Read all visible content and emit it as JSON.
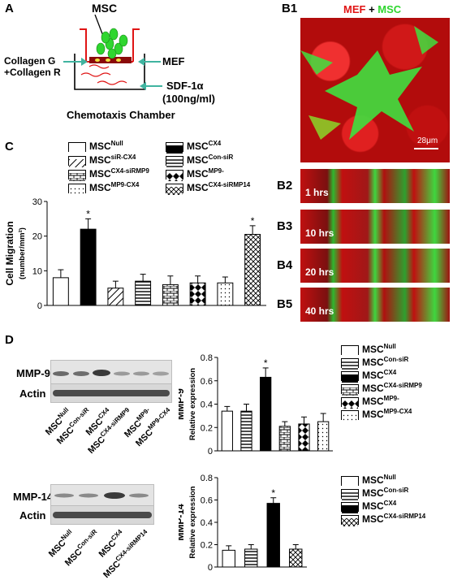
{
  "panels": {
    "A": {
      "label": "A",
      "msc": "MSC",
      "collagen_g": "Collagen G",
      "collagen_r": "+Collagen R",
      "mef": "MEF",
      "sdf": "SDF-1α",
      "sdf_conc": "(100ng/ml)",
      "caption": "Chemotaxis Chamber"
    },
    "B": {
      "label_b1": "B1",
      "title_mef": "MEF",
      "title_plus": " + ",
      "title_msc": "MSC",
      "scale_bar": "28μm",
      "rows": [
        {
          "label": "B2",
          "time": "1 hrs"
        },
        {
          "label": "B3",
          "time": "10 hrs"
        },
        {
          "label": "B4",
          "time": "20 hrs"
        },
        {
          "label": "B5",
          "time": "40 hrs"
        }
      ]
    },
    "C": {
      "label": "C"
    },
    "D": {
      "label": "D",
      "blot1": {
        "band1": "MMP-9",
        "band2": "Actin",
        "lanes": [
          {
            "base": "MSC",
            "sup": "Null"
          },
          {
            "base": "MSC",
            "sup": "Con-siR"
          },
          {
            "base": "MSC",
            "sup": "CX4"
          },
          {
            "base": "MSC",
            "sup": "CX4-siRMP9"
          },
          {
            "base": "MSC",
            "sup": "MP9-"
          },
          {
            "base": "MSC",
            "sup": "MP9-CX4"
          }
        ]
      },
      "blot2": {
        "band1": "MMP-14",
        "band2": "Actin",
        "lanes": [
          {
            "base": "MSC",
            "sup": "Null"
          },
          {
            "base": "MSC",
            "sup": "Con-siR"
          },
          {
            "base": "MSC",
            "sup": "CX4"
          },
          {
            "base": "MSC",
            "sup": "CX4-siRMP14"
          }
        ]
      }
    },
    "legend_C": [
      {
        "base": "MSC",
        "sup": "Null",
        "pattern": "white"
      },
      {
        "base": "MSC",
        "sup": "CX4",
        "pattern": "black"
      },
      {
        "base": "MSC",
        "sup": "siR-CX4",
        "pattern": "diag"
      },
      {
        "base": "MSC",
        "sup": "Con-siR",
        "pattern": "hlines"
      },
      {
        "base": "MSC",
        "sup": "CX4-siRMP9",
        "pattern": "bricks"
      },
      {
        "base": "MSC",
        "sup": "MP9-",
        "pattern": "diamonds"
      },
      {
        "base": "MSC",
        "sup": "MP9-CX4",
        "pattern": "dots"
      },
      {
        "base": "MSC",
        "sup": "CX4-siRMP14",
        "pattern": "cross"
      }
    ],
    "legend_D1": [
      {
        "base": "MSC",
        "sup": "Null",
        "pattern": "white"
      },
      {
        "base": "MSC",
        "sup": "Con-siR",
        "pattern": "hlines"
      },
      {
        "base": "MSC",
        "sup": "CX4",
        "pattern": "black"
      },
      {
        "base": "MSC",
        "sup": "CX4-siRMP9",
        "pattern": "bricks"
      },
      {
        "base": "MSC",
        "sup": "MP9-",
        "pattern": "diamonds"
      },
      {
        "base": "MSC",
        "sup": "MP9-CX4",
        "pattern": "dots"
      }
    ],
    "legend_D2": [
      {
        "base": "MSC",
        "sup": "Null",
        "pattern": "white"
      },
      {
        "base": "MSC",
        "sup": "Con-siR",
        "pattern": "hlines"
      },
      {
        "base": "MSC",
        "sup": "CX4",
        "pattern": "black"
      },
      {
        "base": "MSC",
        "sup": "CX4-siRMP14",
        "pattern": "cross"
      }
    ]
  },
  "colors": {
    "red": "#e01414",
    "green": "#2fd62f",
    "teal": "#40b4a0",
    "dark_red": "#8a0a0a"
  },
  "chart_data": [
    {
      "id": "migration",
      "type": "bar",
      "ylabel": "Cell Migration",
      "ylabel2": "(number/mm²)",
      "ylim": [
        0,
        30
      ],
      "yticks": [
        0,
        10,
        20,
        30
      ],
      "patterns": [
        "white",
        "black",
        "diag",
        "hlines",
        "bricks",
        "diamonds",
        "dots",
        "cross"
      ],
      "values": [
        8,
        22,
        5,
        7,
        6,
        6.5,
        6.5,
        20.5
      ],
      "errors": [
        2.3,
        3,
        2,
        2,
        2.5,
        2,
        1.7,
        2.5
      ],
      "significant": [
        false,
        true,
        false,
        false,
        false,
        false,
        false,
        true
      ],
      "marker": "*"
    },
    {
      "id": "mmp9",
      "type": "bar",
      "ylabel": "MMP-9",
      "ylabel2": "Relative expression",
      "ylim": [
        0,
        0.8
      ],
      "yticks": [
        "0",
        "0.2",
        "0.4",
        "0.6",
        "0.8"
      ],
      "patterns": [
        "white",
        "hlines",
        "black",
        "bricks",
        "diamonds",
        "dots"
      ],
      "values": [
        0.34,
        0.34,
        0.63,
        0.21,
        0.23,
        0.25
      ],
      "errors": [
        0.04,
        0.06,
        0.08,
        0.04,
        0.06,
        0.07
      ],
      "significant": [
        false,
        false,
        true,
        false,
        false,
        false
      ],
      "marker": "*"
    },
    {
      "id": "mmp14",
      "type": "bar",
      "ylabel": "MMP-14",
      "ylabel2": "Relative expression",
      "ylim": [
        0,
        0.8
      ],
      "yticks": [
        "0",
        "0.2",
        "0.4",
        "0.6",
        "0.8"
      ],
      "patterns": [
        "white",
        "hlines",
        "black",
        "cross"
      ],
      "values": [
        0.15,
        0.16,
        0.57,
        0.16
      ],
      "errors": [
        0.04,
        0.04,
        0.05,
        0.04
      ],
      "significant": [
        false,
        false,
        true,
        false
      ],
      "marker": "*"
    }
  ]
}
